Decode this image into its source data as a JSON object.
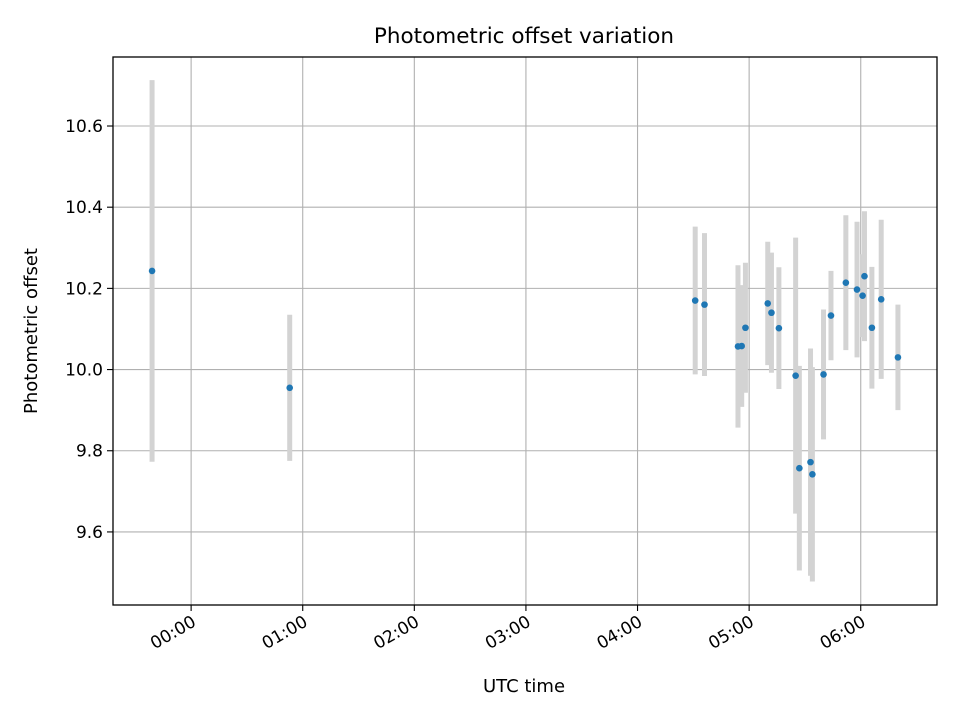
{
  "chart_data": {
    "type": "scatter",
    "title": "Photometric offset variation",
    "xlabel": "UTC time",
    "ylabel": "Photometric offset",
    "x_type": "time",
    "xlim": [
      "23:18",
      "06:41"
    ],
    "ylim": [
      9.42,
      10.77
    ],
    "x_ticks": [
      "00:00",
      "01:00",
      "02:00",
      "03:00",
      "04:00",
      "05:00",
      "06:00"
    ],
    "y_ticks": [
      9.6,
      9.8,
      10.0,
      10.2,
      10.4,
      10.6
    ],
    "y_tick_labels": [
      "9.6",
      "9.8",
      "10.0",
      "10.2",
      "10.4",
      "10.6"
    ],
    "grid": true,
    "marker_color": "#1f77b4",
    "errorbar_color": "#d3d3d3",
    "points": [
      {
        "x": "23:39",
        "y": 10.243,
        "low": 9.773,
        "high": 10.713
      },
      {
        "x": "00:53",
        "y": 9.955,
        "low": 9.775,
        "high": 10.135
      },
      {
        "x": "04:31",
        "y": 10.17,
        "low": 9.988,
        "high": 10.352
      },
      {
        "x": "04:36",
        "y": 10.16,
        "low": 9.984,
        "high": 10.336
      },
      {
        "x": "04:54",
        "y": 10.057,
        "low": 9.857,
        "high": 10.257
      },
      {
        "x": "04:56",
        "y": 10.058,
        "low": 9.908,
        "high": 10.208
      },
      {
        "x": "04:58",
        "y": 10.103,
        "low": 9.943,
        "high": 10.263
      },
      {
        "x": "05:10",
        "y": 10.163,
        "low": 10.011,
        "high": 10.315
      },
      {
        "x": "05:12",
        "y": 10.14,
        "low": 9.992,
        "high": 10.288
      },
      {
        "x": "05:16",
        "y": 10.102,
        "low": 9.952,
        "high": 10.252
      },
      {
        "x": "05:25",
        "y": 9.985,
        "low": 9.645,
        "high": 10.325
      },
      {
        "x": "05:27",
        "y": 9.757,
        "low": 9.505,
        "high": 10.009
      },
      {
        "x": "05:33",
        "y": 9.772,
        "low": 9.492,
        "high": 10.052
      },
      {
        "x": "05:34",
        "y": 9.742,
        "low": 9.478,
        "high": 10.006
      },
      {
        "x": "05:40",
        "y": 9.988,
        "low": 9.828,
        "high": 10.148
      },
      {
        "x": "05:44",
        "y": 10.133,
        "low": 10.023,
        "high": 10.243
      },
      {
        "x": "05:52",
        "y": 10.214,
        "low": 10.048,
        "high": 10.38
      },
      {
        "x": "05:58",
        "y": 10.197,
        "low": 10.03,
        "high": 10.364
      },
      {
        "x": "06:01",
        "y": 10.182,
        "low": 10.08,
        "high": 10.284
      },
      {
        "x": "06:02",
        "y": 10.23,
        "low": 10.07,
        "high": 10.39
      },
      {
        "x": "06:06",
        "y": 10.103,
        "low": 9.953,
        "high": 10.253
      },
      {
        "x": "06:11",
        "y": 10.173,
        "low": 9.977,
        "high": 10.369
      },
      {
        "x": "06:20",
        "y": 10.03,
        "low": 9.9,
        "high": 10.16
      }
    ]
  }
}
